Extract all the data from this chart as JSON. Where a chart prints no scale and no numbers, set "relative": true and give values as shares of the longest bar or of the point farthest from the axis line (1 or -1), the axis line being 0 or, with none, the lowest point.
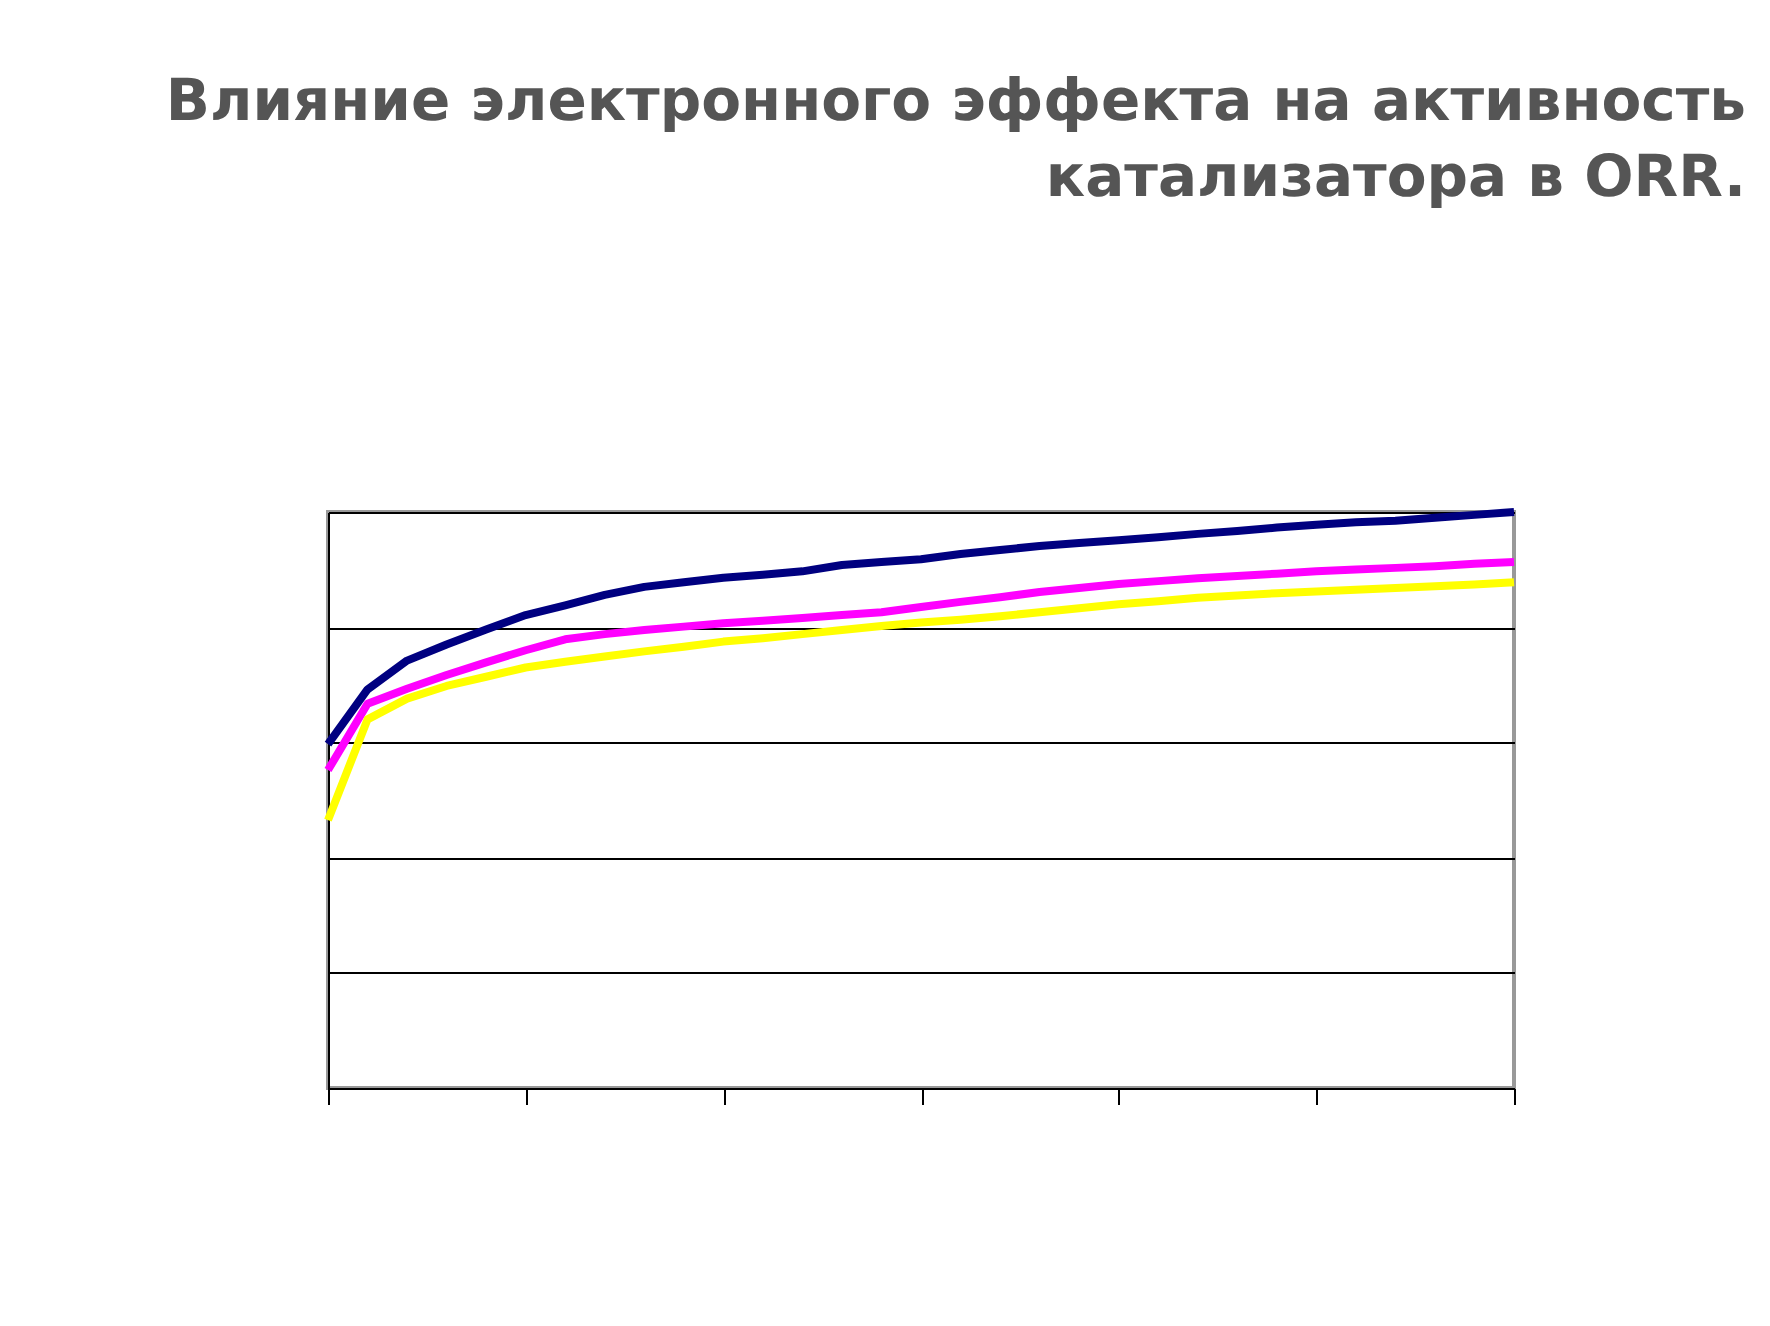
{
  "chart_data": {
    "type": "line",
    "relative": true,
    "title": [
      "Влияние электронного эффекта на активность",
      "катализатора в ORR."
    ],
    "grid": "y",
    "legend": false,
    "marker": "none",
    "line_style": "solid",
    "categories": [
      null,
      null,
      null,
      null,
      null,
      null,
      null,
      null,
      null,
      null,
      null,
      null,
      null,
      null,
      null,
      null,
      null,
      null,
      null,
      null,
      null,
      null,
      null,
      null,
      null,
      null,
      null,
      null,
      null,
      null,
      null
    ],
    "series": [
      {
        "color": "#000080",
        "values": [
          0.597,
          0.692,
          0.742,
          0.77,
          0.796,
          0.821,
          0.838,
          0.856,
          0.87,
          0.878,
          0.886,
          0.891,
          0.897,
          0.908,
          0.913,
          0.918,
          0.927,
          0.934,
          0.941,
          0.946,
          0.951,
          0.956,
          0.962,
          0.967,
          0.973,
          0.978,
          0.982,
          0.985,
          0.99,
          0.995,
          1
        ]
      },
      {
        "color": "#ff00ff",
        "values": [
          0.552,
          0.667,
          0.693,
          0.717,
          0.739,
          0.76,
          0.779,
          0.788,
          0.795,
          0.801,
          0.807,
          0.811,
          0.816,
          0.821,
          0.826,
          0.835,
          0.844,
          0.852,
          0.861,
          0.868,
          0.875,
          0.88,
          0.885,
          0.889,
          0.893,
          0.897,
          0.9,
          0.903,
          0.906,
          0.91,
          0.913
        ]
      },
      {
        "color": "#ffff00",
        "values": [
          0.465,
          0.64,
          0.676,
          0.698,
          0.714,
          0.73,
          0.74,
          0.749,
          0.758,
          0.766,
          0.775,
          0.781,
          0.788,
          0.795,
          0.802,
          0.808,
          0.813,
          0.819,
          0.826,
          0.833,
          0.84,
          0.845,
          0.851,
          0.855,
          0.859,
          0.862,
          0.865,
          0.868,
          0.871,
          0.874,
          0.878
        ]
      }
    ]
  }
}
